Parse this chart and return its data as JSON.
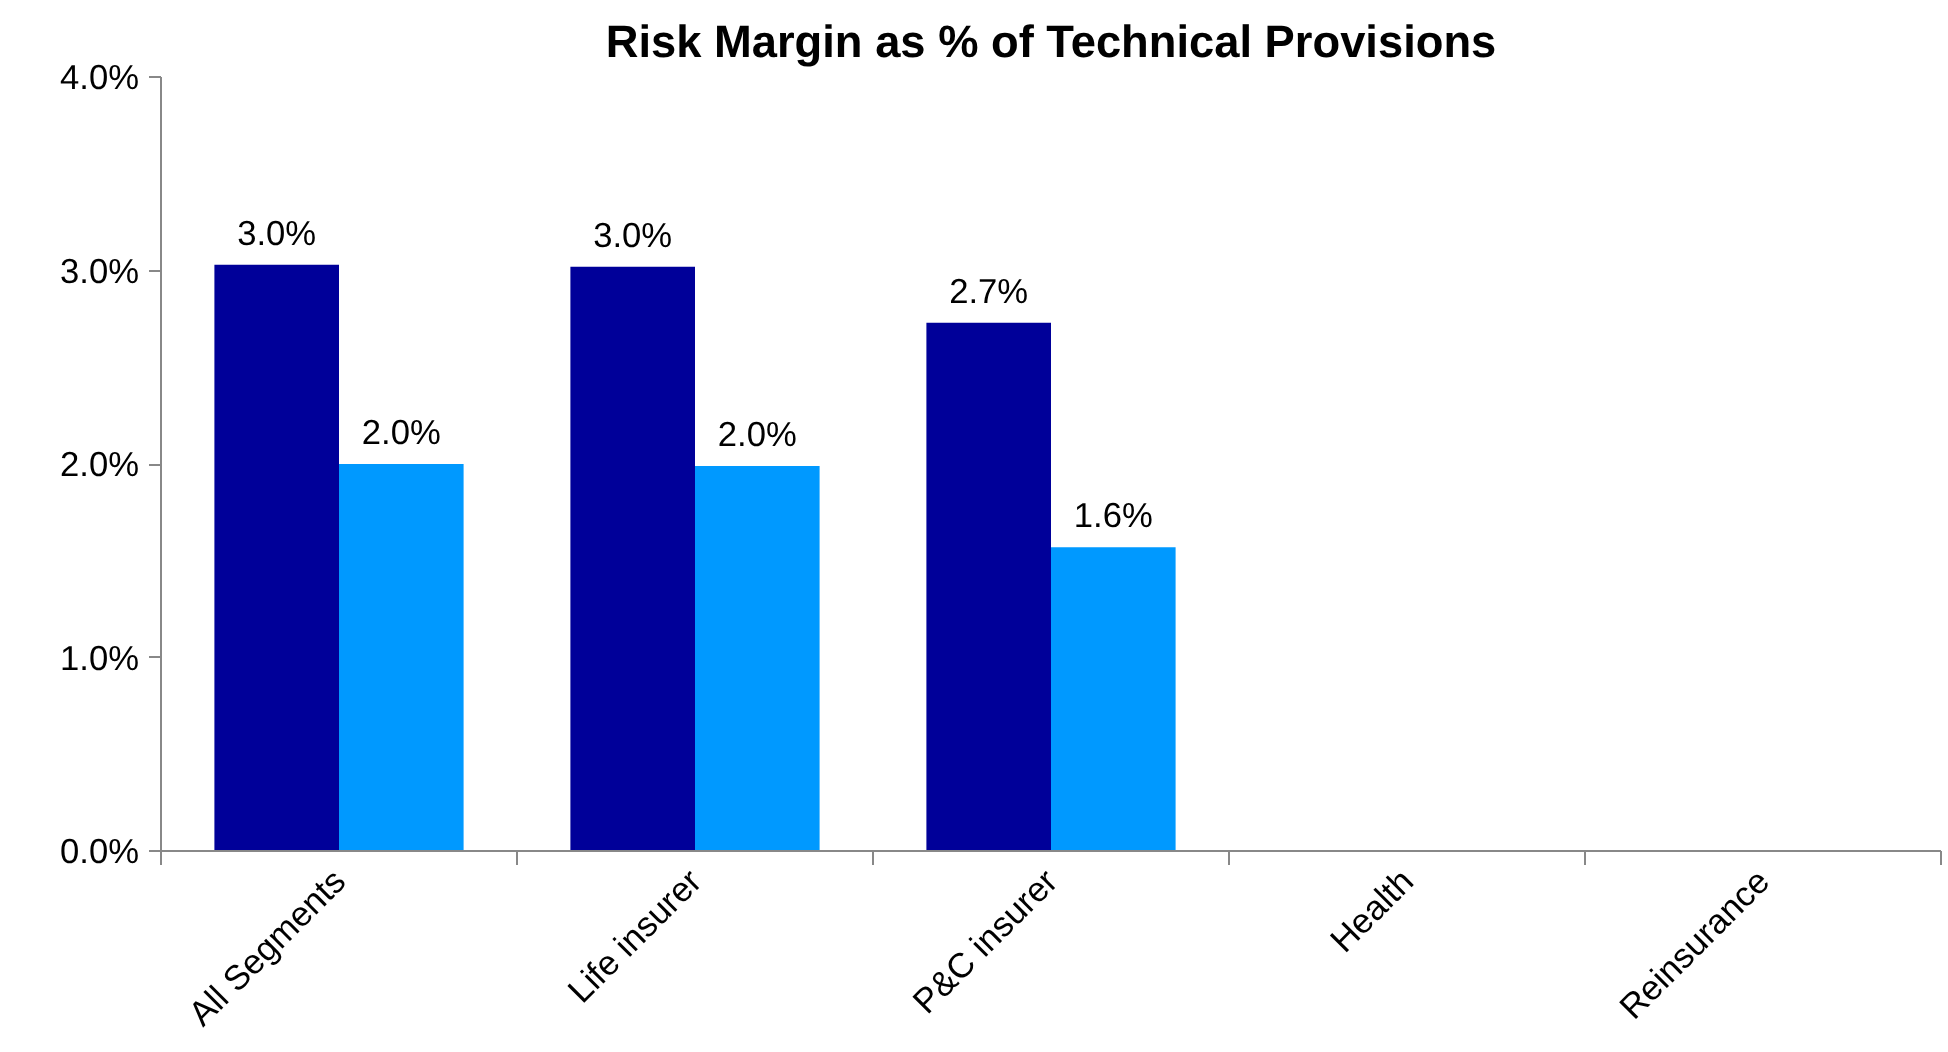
{
  "chart_data": {
    "type": "bar",
    "title": "Risk Margin as % of Technical Provisions",
    "categories": [
      "All Segments",
      "Life insurer",
      "P&C insurer",
      "Health",
      "Reinsurance"
    ],
    "series": [
      {
        "color": "#000099",
        "values": [
          3.03,
          3.02,
          2.73,
          null,
          null
        ],
        "value_labels": [
          "3.0%",
          "3.0%",
          "2.7%",
          null,
          null
        ]
      },
      {
        "color": "#0099ff",
        "values": [
          2.0,
          1.99,
          1.57,
          null,
          null
        ],
        "value_labels": [
          "2.0%",
          "2.0%",
          "1.6%",
          null,
          null
        ]
      }
    ],
    "ylim": [
      0,
      4
    ],
    "yticks": [
      {
        "value": 0,
        "label": "0.0%"
      },
      {
        "value": 1,
        "label": "1.0%"
      },
      {
        "value": 2,
        "label": "2.0%"
      },
      {
        "value": 3,
        "label": "3.0%"
      },
      {
        "value": 4,
        "label": "4.0%"
      }
    ],
    "grid": false
  }
}
